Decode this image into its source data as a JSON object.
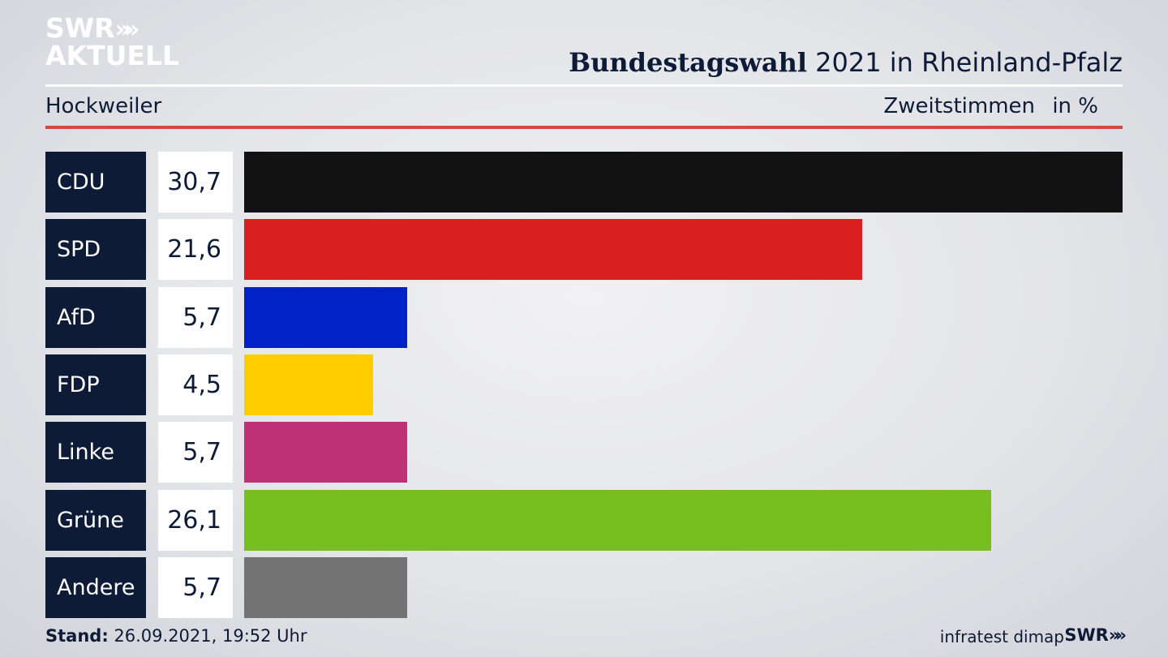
{
  "logo": {
    "line1": "SWR",
    "chevrons": "»",
    "line2": "AKTUELL"
  },
  "header": {
    "title_bold": "Bundestagswahl",
    "title_rest": " 2021 in Rheinland-Pfalz",
    "region": "Hockweiler",
    "vote_type": "Zweitstimmen",
    "unit": "in %"
  },
  "footer": {
    "stand_label": "Stand:",
    "stand_value": " 26.09.2021, 19:52 Uhr",
    "source": "infratest dimap",
    "swr": "SWR",
    "swr_chevrons": "»"
  },
  "chart_data": {
    "type": "bar",
    "orientation": "horizontal",
    "categories": [
      "CDU",
      "SPD",
      "AfD",
      "FDP",
      "Linke",
      "Grüne",
      "Andere"
    ],
    "values": [
      30.7,
      21.6,
      5.7,
      4.5,
      5.7,
      26.1,
      5.7
    ],
    "value_labels": [
      "30,7",
      "21,6",
      "5,7",
      "4,5",
      "5,7",
      "26,1",
      "5,7"
    ],
    "colors": [
      "#121212",
      "#d91f1f",
      "#0222c8",
      "#ffcc00",
      "#be3174",
      "#78be1e",
      "#737373"
    ],
    "xlim": [
      0,
      30.7
    ]
  }
}
